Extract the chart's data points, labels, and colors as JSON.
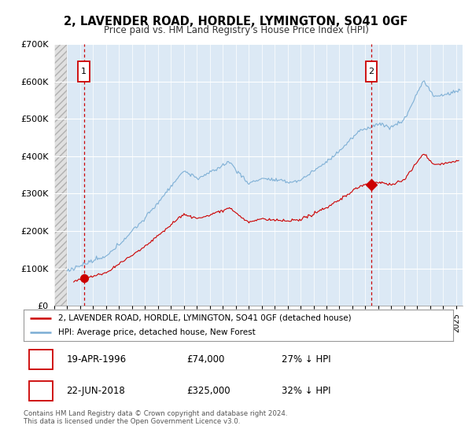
{
  "title": "2, LAVENDER ROAD, HORDLE, LYMINGTON, SO41 0GF",
  "subtitle": "Price paid vs. HM Land Registry's House Price Index (HPI)",
  "legend_line1": "2, LAVENDER ROAD, HORDLE, LYMINGTON, SO41 0GF (detached house)",
  "legend_line2": "HPI: Average price, detached house, New Forest",
  "annotation1_date": "19-APR-1996",
  "annotation1_price": "£74,000",
  "annotation1_hpi": "27% ↓ HPI",
  "annotation2_date": "22-JUN-2018",
  "annotation2_price": "£325,000",
  "annotation2_hpi": "32% ↓ HPI",
  "footnote": "Contains HM Land Registry data © Crown copyright and database right 2024.\nThis data is licensed under the Open Government Licence v3.0.",
  "sale1_year": 1996.29,
  "sale1_price": 74000,
  "sale2_year": 2018.46,
  "sale2_price": 325000,
  "red_line_color": "#cc0000",
  "blue_line_color": "#7aadd4",
  "grid_color": "#ffffff",
  "plot_bg": "#dce9f5",
  "ylim": [
    0,
    700000
  ],
  "xlim_start": 1994.0,
  "xlim_end": 2025.5
}
